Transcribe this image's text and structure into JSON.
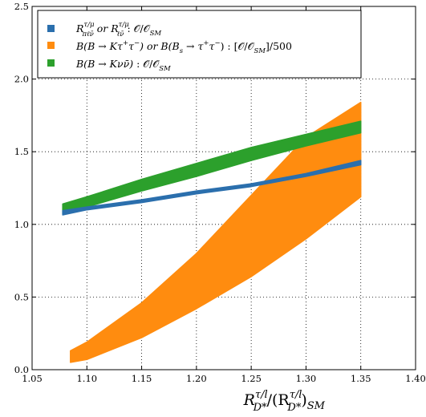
{
  "chart_data": {
    "type": "scatter",
    "xlabel": "R^{τ/l}_{D*} / (R^{τ/l}_{D*})_{SM}",
    "ylabel": "",
    "xlim": [
      1.05,
      1.4
    ],
    "ylim": [
      0.0,
      2.5
    ],
    "x_ticks": [
      "1.05",
      "1.10",
      "1.15",
      "1.20",
      "1.25",
      "1.30",
      "1.35",
      "1.40"
    ],
    "y_ticks": [
      "0.0",
      "0.5",
      "1.0",
      "1.5",
      "2.0",
      "2.5"
    ],
    "grid": true,
    "legend_position": "top-left",
    "series": [
      {
        "name": "R^{τ/μ}_{πℓν̄} or R^{τ/μ}_{ℓν̄} : 𝒪/𝒪_SM",
        "color": "#2b6fad",
        "band": {
          "x": [
            1.078,
            1.1,
            1.15,
            1.2,
            1.25,
            1.3,
            1.35
          ],
          "y_low": [
            1.065,
            1.1,
            1.15,
            1.21,
            1.26,
            1.33,
            1.41
          ],
          "y_high": [
            1.095,
            1.12,
            1.17,
            1.23,
            1.28,
            1.35,
            1.44
          ]
        }
      },
      {
        "name": "B(B → Kτ⁺τ⁻) or B(B_s → τ⁺τ⁻) : [𝒪/𝒪_SM]/500",
        "color": "#ff8c0f",
        "band": {
          "x": [
            1.085,
            1.1,
            1.15,
            1.2,
            1.25,
            1.3,
            1.35
          ],
          "y_low": [
            0.05,
            0.07,
            0.22,
            0.42,
            0.64,
            0.9,
            1.19
          ],
          "y_high": [
            0.13,
            0.19,
            0.46,
            0.8,
            1.2,
            1.6,
            1.84
          ]
        }
      },
      {
        "name": "B(B → Kνν̄) : 𝒪/𝒪_SM",
        "color": "#2ca02c",
        "band": {
          "x": [
            1.078,
            1.1,
            1.15,
            1.2,
            1.25,
            1.3,
            1.35
          ],
          "y_low": [
            1.07,
            1.12,
            1.23,
            1.33,
            1.44,
            1.54,
            1.63
          ],
          "y_high": [
            1.14,
            1.19,
            1.31,
            1.42,
            1.53,
            1.62,
            1.71
          ]
        }
      }
    ]
  }
}
